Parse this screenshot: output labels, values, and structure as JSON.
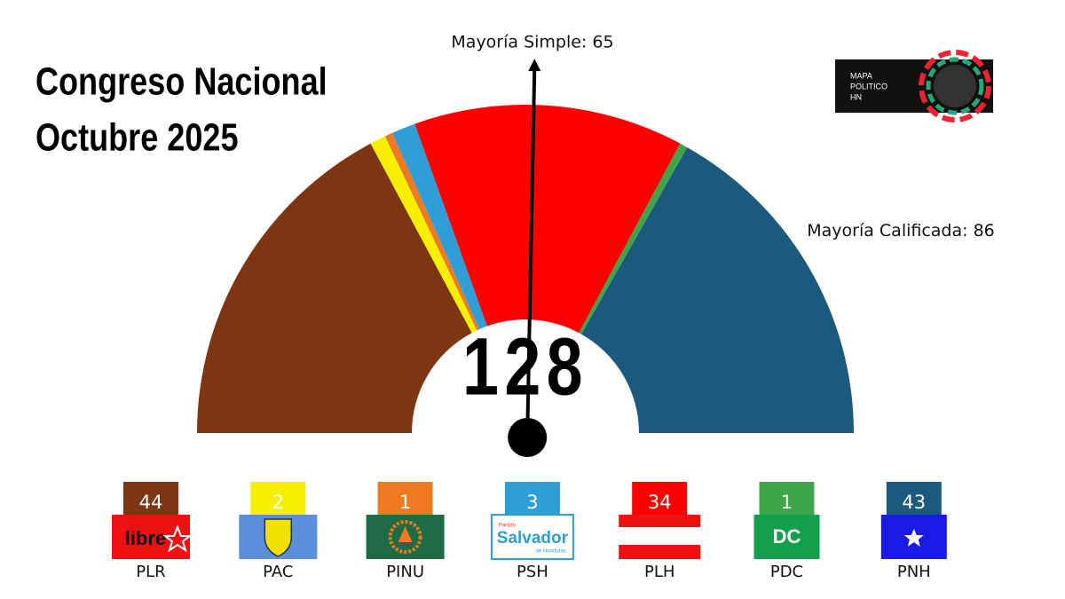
{
  "chart_data": {
    "type": "parliament",
    "title": [
      "Congreso Nacional",
      "Octubre 2025"
    ],
    "total": 128,
    "annotations": [
      {
        "text": "Mayoría Simple: 65",
        "value": 65
      },
      {
        "text": "Mayoría Calificada: 86"
      }
    ],
    "series": [
      {
        "name": "PLR",
        "color": "#7e3511",
        "values": [
          44
        ],
        "logo_text": "libre"
      },
      {
        "name": "PAC",
        "color": "#f6f000",
        "values": [
          2
        ]
      },
      {
        "name": "PINU",
        "color": "#f07a22",
        "values": [
          1
        ]
      },
      {
        "name": "PSH",
        "color": "#2e9fd6",
        "values": [
          3
        ],
        "logo_text": "Salvador",
        "logo_subtext": [
          "Partido",
          "de Honduras"
        ]
      },
      {
        "name": "PLH",
        "color": "#ff0000",
        "values": [
          34
        ]
      },
      {
        "name": "PDC",
        "color": "#3fa54a",
        "values": [
          1
        ],
        "logo_text": "DC"
      },
      {
        "name": "PNH",
        "color": "#1b5a7d",
        "values": [
          43
        ]
      }
    ]
  },
  "brand": {
    "lines": [
      "MAPA",
      "POLITICO",
      "HN"
    ]
  }
}
